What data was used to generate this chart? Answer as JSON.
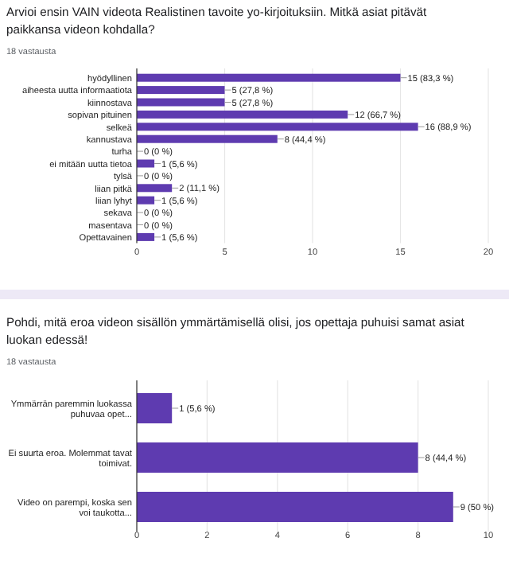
{
  "chart_data": [
    {
      "type": "bar",
      "orientation": "horizontal",
      "title": "Arvioi ensin VAIN videota Realistinen tavoite yo-kirjoituksiin. Mitkä asiat pitävät paikkansa videon kohdalla?",
      "subtitle": "18 vastausta",
      "categories": [
        "hyödyllinen",
        "aiheesta uutta informaatiota",
        "kiinnostava",
        "sopivan pituinen",
        "selkeä",
        "kannustava",
        "turha",
        "ei mitään uutta tietoa",
        "tylsä",
        "liian pitkä",
        "liian lyhyt",
        "sekava",
        "masentava",
        "Opettavainen"
      ],
      "values": [
        15,
        5,
        5,
        12,
        16,
        8,
        0,
        1,
        0,
        2,
        1,
        0,
        0,
        1
      ],
      "value_labels": [
        "15 (83,3 %)",
        "5 (27,8 %)",
        "5 (27,8 %)",
        "12 (66,7 %)",
        "16 (88,9 %)",
        "8 (44,4 %)",
        "0 (0 %)",
        "1 (5,6 %)",
        "0 (0 %)",
        "2 (11,1 %)",
        "1 (5,6 %)",
        "0 (0 %)",
        "0 (0 %)",
        "1 (5,6 %)"
      ],
      "color": "#5e3bb0",
      "xlim": [
        0,
        20
      ],
      "xticks": [
        0,
        5,
        10,
        15,
        20
      ],
      "grid": "x"
    },
    {
      "type": "bar",
      "orientation": "horizontal",
      "title": "Pohdi, mitä eroa videon sisällön ymmärtämisellä olisi, jos opettaja puhuisi samat asiat luokan edessä!",
      "subtitle": "18 vastausta",
      "categories": [
        "Ymmärrän paremmin luokassa puhuvaa opet...",
        "Ei suurta eroa. Molemmat tavat toimivat.",
        "Video on parempi, koska sen voi taukotta..."
      ],
      "values": [
        1,
        8,
        9
      ],
      "value_labels": [
        "1 (5,6 %)",
        "8 (44,4 %)",
        "9 (50 %)"
      ],
      "color": "#5e3bb0",
      "xlim": [
        0,
        10
      ],
      "xticks": [
        0,
        2,
        4,
        6,
        8,
        10
      ],
      "grid": "x"
    }
  ]
}
